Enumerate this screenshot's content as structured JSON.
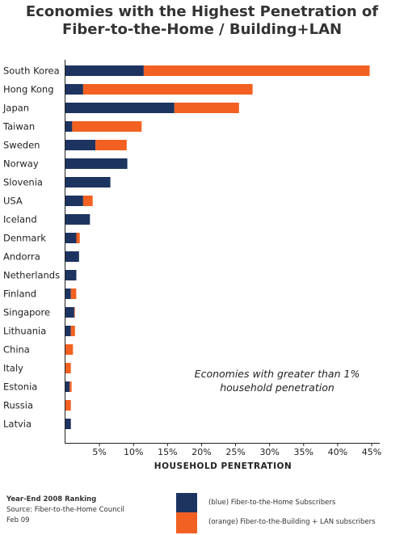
{
  "title_line1": "Economies with the Highest Penetration of",
  "title_line2": "Fiber-to-the-Home / Building+LAN",
  "colors": {
    "blue": "#1d3461",
    "orange": "#f26122"
  },
  "chart_data": {
    "type": "bar",
    "orientation": "horizontal",
    "stacked": true,
    "title": "Economies with the Highest Penetration of Fiber-to-the-Home / Building+LAN",
    "xlabel": "HOUSEHOLD PENETRATION",
    "ylabel": "",
    "xlim": [
      0,
      45
    ],
    "xticks": [
      "5%",
      "10%",
      "15%",
      "20%",
      "25%",
      "30%",
      "35%",
      "40%",
      "45%"
    ],
    "categories": [
      "South Korea",
      "Hong Kong",
      "Japan",
      "Taiwan",
      "Sweden",
      "Norway",
      "Slovenia",
      "USA",
      "Iceland",
      "Denmark",
      "Andorra",
      "Netherlands",
      "Finland",
      "Singapore",
      "Lithuania",
      "China",
      "Italy",
      "Estonia",
      "Russia",
      "Latvia"
    ],
    "series": [
      {
        "name": "(blue) Fiber-to-the-Home Subscribers",
        "color": "#1d3461",
        "values": [
          11.5,
          2.6,
          16.0,
          1.0,
          4.4,
          9.1,
          6.6,
          2.6,
          3.6,
          1.6,
          2.0,
          1.6,
          0.8,
          1.3,
          0.8,
          0.0,
          0.0,
          0.6,
          0.0,
          0.8
        ]
      },
      {
        "name": "(orange) Fiber-to-the-Building + LAN subscribers",
        "color": "#f26122",
        "values": [
          33.2,
          24.9,
          9.5,
          10.2,
          4.6,
          0.0,
          0.0,
          1.4,
          0.0,
          0.5,
          0.0,
          0.0,
          0.8,
          0.1,
          0.6,
          1.1,
          0.8,
          0.3,
          0.8,
          0.0
        ]
      }
    ],
    "annotation_line1": "Economies with greater than 1%",
    "annotation_line2": "household penetration",
    "legend_position": "bottom-right"
  },
  "footer": {
    "ranking": "Year-End 2008 Ranking",
    "source": "Source: Fiber-to-the-Home Council",
    "date": "Feb 09"
  }
}
